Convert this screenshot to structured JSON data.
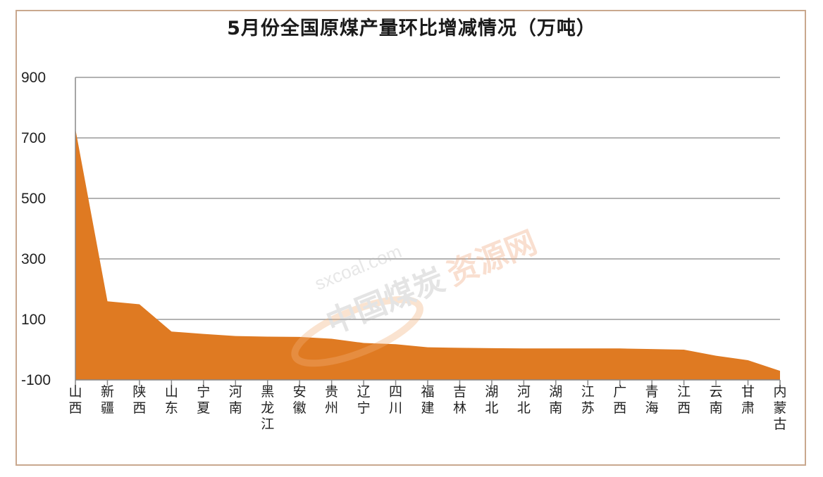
{
  "chart_data": {
    "type": "area",
    "title": "5月份全国原煤产量环比增减情况（万吨）",
    "xlabel": "",
    "ylabel": "",
    "categories": [
      "山西",
      "新疆",
      "陕西",
      "山东",
      "宁夏",
      "河南",
      "黑龙江",
      "安徽",
      "贵州",
      "辽宁",
      "四川",
      "福建",
      "吉林",
      "湖北",
      "河北",
      "湖南",
      "江苏",
      "广西",
      "青海",
      "江西",
      "云南",
      "甘肃",
      "内蒙古"
    ],
    "values": [
      730,
      160,
      150,
      60,
      52,
      45,
      43,
      42,
      36,
      22,
      18,
      8,
      6,
      5,
      4,
      4,
      4,
      4,
      2,
      0,
      -20,
      -35,
      -70
    ],
    "ylim": [
      -100,
      900
    ],
    "yticks": [
      900,
      700,
      500,
      300,
      100,
      -100
    ],
    "grid": true,
    "color": "#df7a22"
  },
  "watermark": {
    "text_en": "sxcoal.com",
    "text_cn_a": "中国煤炭",
    "text_cn_b": "资源网"
  }
}
